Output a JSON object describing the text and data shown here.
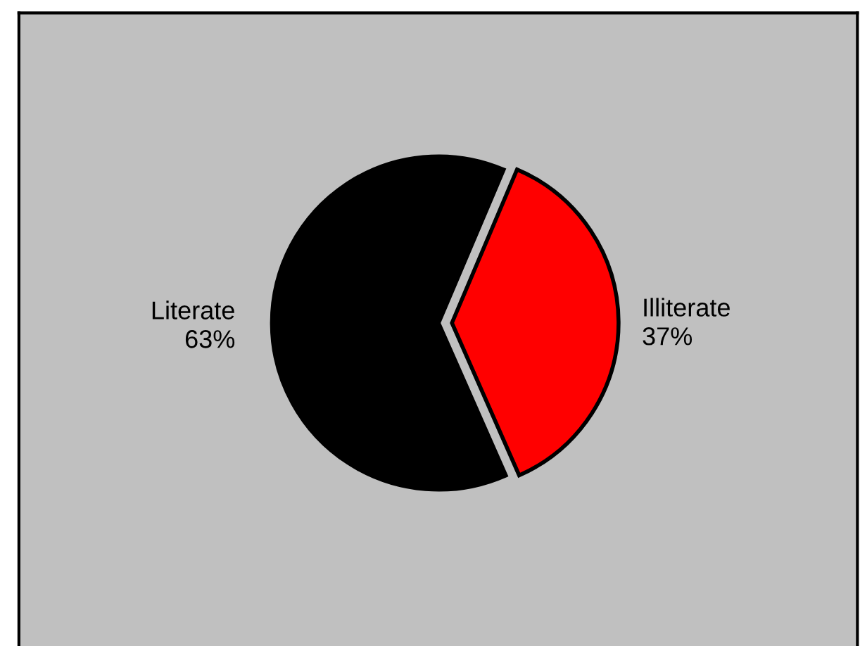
{
  "chart_data": {
    "type": "pie",
    "categories": [
      "Literate",
      "Illiterate"
    ],
    "values": [
      63,
      37
    ],
    "value_labels": [
      "63%",
      "37%"
    ],
    "colors": [
      "#000000",
      "#ff0000"
    ]
  }
}
